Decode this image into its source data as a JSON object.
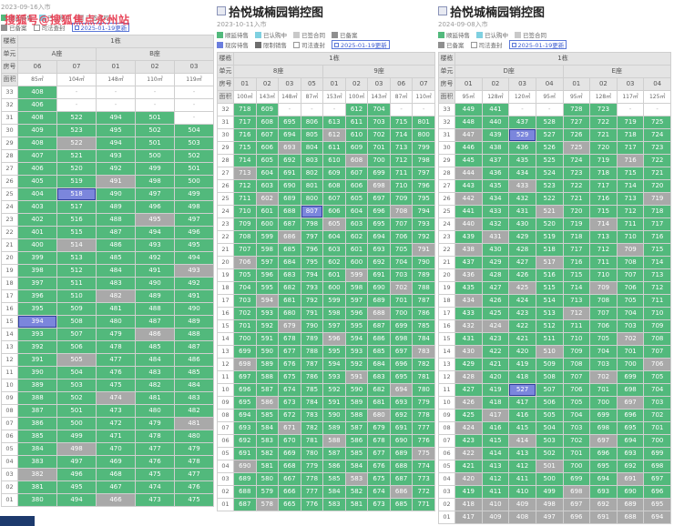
{
  "watermark": "搜狐号@搜狐焦点永州站",
  "colors": {
    "available_green": "#52b97c",
    "signed_gray": "#a9a9a9",
    "subscribed_blue": "#7b86dc",
    "cyan": "#7fd0e0",
    "silver": "#c9c9c9",
    "dark_gray": "#8f8f8f",
    "deep_gray": "#6e6e6e",
    "note_blue": "#3b5bd0",
    "watermark_red": "#e8465a"
  },
  "panels": [
    {
      "title": "",
      "date": "2023-09-16入市",
      "building": "1栋",
      "header_labels": {
        "building": "楼栋",
        "unit": "单元",
        "room": "房号",
        "area": "面积"
      },
      "legend": [
        [
          {
            "label": "顺延待售",
            "color": "#52b97c"
          },
          {
            "label": "已认购中",
            "color": "#7fd0e0"
          },
          {
            "label": "已签合同",
            "color": "#c9c9c9"
          }
        ],
        [
          {
            "label": "已备案",
            "color": "#8f8f8f"
          },
          {
            "label": "司法查封",
            "color": "#ffffff"
          },
          {
            "note": true,
            "label": "2025-01-19更新"
          }
        ]
      ],
      "units": [
        {
          "name": "A座",
          "cols": [
            "06",
            "07"
          ]
        },
        {
          "name": "B座",
          "cols": [
            "01",
            "02",
            "03"
          ]
        }
      ],
      "areas": [
        "85㎡",
        "104㎡",
        "148㎡",
        "110㎡",
        "119㎡"
      ],
      "rows": [
        "33|408g -n -n -n -n",
        "32|406g -n -n -n -n",
        "31|408g 522g 494g 501g -n",
        "30|409g 523g 495g 502g 504g",
        "29|408g 522a 494g 501g 503g",
        "28|407g 521g 493g 500g 502g",
        "27|406g 520g 492g 499g 501g",
        "26|405g 519g 491a 498g 500g",
        "25|404g 518b 490g 497g 499g",
        "24|403g 517g 489g 496g 498g",
        "23|402g 516g 488g 495a 497g",
        "22|401g 515g 487g 494g 496g",
        "21|400g 514a 486g 493g 495g",
        "20|399g 513g 485g 492g 494g",
        "19|398g 512g 484g 491g 493a",
        "18|397g 511g 483g 490g 492g",
        "17|396g 510g 482a 489g 491g",
        "16|395g 509g 481g 488g 490g",
        "15|394b 508g 480g 487g 489g",
        "14|393g 507g 479g 486a 488g",
        "13|392g 506g 478g 485g 487g",
        "12|391g 505a 477g 484g 486g",
        "11|390g 504g 476g 483g 485g",
        "10|389g 503g 475g 482g 484g",
        "09|388g 502g 474a 481g 483g",
        "08|387g 501g 473g 480g 482g",
        "07|386g 500g 472g 479g 481a",
        "06|385g 499g 471g 478g 480g",
        "05|384g 498a 470g 477g 479g",
        "04|383g 497g 469g 476g 478g",
        "03|382a 496g 468g 475g 477g",
        "02|381g 495g 467g 474g 476g",
        "01|380g 494g 466a 473g 475g"
      ]
    },
    {
      "title": "拾悦城楠园销控图",
      "date": "2023-10-11入市",
      "building": "1栋",
      "header_labels": {
        "building": "楼栋",
        "unit": "单元",
        "room": "房号",
        "area": "面积"
      },
      "legend": [
        [
          {
            "label": "顺延待售",
            "color": "#52b97c"
          },
          {
            "label": "已认购中",
            "color": "#7fd0e0"
          },
          {
            "label": "已签合同",
            "color": "#c9c9c9"
          },
          {
            "label": "已备案",
            "color": "#8f8f8f"
          }
        ],
        [
          {
            "label": "现房待售",
            "color": "#6b7ede"
          },
          {
            "label": "限制销售",
            "color": "#6e6e6e"
          },
          {
            "label": "司法查封",
            "color": "#ffffff"
          },
          {
            "note": true,
            "label": "2025-01-19更新"
          }
        ]
      ],
      "units": [
        {
          "name": "8座",
          "cols": [
            "01",
            "02",
            "03",
            "05"
          ]
        },
        {
          "name": "9座",
          "cols": [
            "01",
            "02",
            "03",
            "06",
            "07"
          ]
        }
      ],
      "areas": [
        "100㎡",
        "143㎡",
        "148㎡",
        "87㎡",
        "153㎡",
        "100㎡",
        "143㎡",
        "87㎡",
        "110㎡"
      ],
      "rows": [
        "32|718g 609g -n -n -n 612g 704g -n -n",
        "31|717g 608g 695g 806g 613g 611g 703g 715g 801g",
        "30|716g 607g 694g 805g 612a 610g 702g 714g 800g",
        "29|715g 606g 693a 804g 611g 609g 701g 713g 799g",
        "28|714g 605g 692g 803g 610g 608a 700g 712g 798g",
        "27|713a 604g 691g 802g 609g 607g 699g 711g 797g",
        "26|712g 603g 690g 801g 608g 606g 698a 710g 796g",
        "25|711g 602a 689g 800g 607g 605g 697g 709g 795g",
        "24|710g 601g 688g 807b 606g 604g 696g 708a 794g",
        "23|709g 600g 687g 798g 605a 603g 695g 707g 793g",
        "22|708g 599g 686a 797g 604g 602g 694g 706g 792g",
        "21|707g 598g 685g 796g 603g 601g 693g 705g 791a",
        "20|706a 597g 684g 795g 602g 600g 692g 704g 790g",
        "19|705g 596g 683g 794g 601g 599a 691g 703g 789g",
        "18|704g 595g 682g 793g 600g 598g 690g 702a 788g",
        "17|703g 594a 681g 792g 599g 597g 689g 701g 787g",
        "16|702g 593g 680g 791g 598g 596g 688a 700g 786g",
        "15|701g 592g 679a 790g 597g 595g 687g 699g 785g",
        "14|700g 591g 678g 789g 596a 594g 686g 698g 784g",
        "13|699g 590g 677g 788g 595g 593g 685g 697g 783a",
        "12|698a 589g 676g 787g 594g 592g 684g 696g 782g",
        "11|697g 588g 675g 786g 593g 591a 683g 695g 781g",
        "10|696g 587g 674g 785g 592g 590g 682g 694a 780g",
        "09|695g 586a 673g 784g 591g 589g 681g 693g 779g",
        "08|694g 585g 672g 783g 590g 588g 680a 692g 778g",
        "07|693g 584g 671a 782g 589g 587g 679g 691g 777g",
        "06|692g 583g 670g 781g 588a 586g 678g 690g 776g",
        "05|691g 582g 669g 780g 587g 585g 677g 689g 775a",
        "04|690a 581g 668g 779g 586g 584g 676g 688g 774g",
        "03|689g 580g 667g 778g 585g 583a 675g 687g 773g",
        "02|688g 579g 666g 777g 584g 582g 674g 686a 772g",
        "01|687g 578a 665g 776g 583g 581g 673g 685g 771g"
      ]
    },
    {
      "title": "拾悦城楠园销控图",
      "date": "2024-09-08入市",
      "building": "1栋",
      "header_labels": {
        "building": "楼栋",
        "unit": "单元",
        "room": "房号",
        "area": "面积"
      },
      "legend": [
        [
          {
            "label": "顺延待售",
            "color": "#52b97c"
          },
          {
            "label": "已认购中",
            "color": "#7fd0e0"
          },
          {
            "label": "已签合同",
            "color": "#c9c9c9"
          }
        ],
        [
          {
            "label": "已备案",
            "color": "#8f8f8f"
          },
          {
            "label": "司法查封",
            "color": "#ffffff"
          },
          {
            "note": true,
            "label": "2025-01-19更新"
          }
        ]
      ],
      "units": [
        {
          "name": "D座",
          "cols": [
            "01",
            "02",
            "03",
            "04"
          ]
        },
        {
          "name": "E座",
          "cols": [
            "01",
            "02",
            "03",
            "04"
          ]
        }
      ],
      "areas": [
        "95㎡",
        "128㎡",
        "120㎡",
        "95㎡",
        "95㎡",
        "128㎡",
        "117㎡",
        "125㎡"
      ],
      "rows": [
        "33|449g 441g -n -n 728g 723g -n -n",
        "32|448g 440g 437g 528g 727g 722g 719g 725g",
        "31|447a 439g 529b 527g 726g 721g 718g 724g",
        "30|446g 438g 436g 526g 725a 720g 717g 723g",
        "29|445g 437g 435g 525g 724g 719g 716a 722g",
        "28|444a 436g 434g 524g 723g 718g 715g 721g",
        "27|443g 435g 433a 523g 722g 717g 714g 720g",
        "26|442a 434g 432g 522g 721g 716g 713g 719a",
        "25|441g 433g 431g 521a 720g 715g 712g 718g",
        "24|440a 432g 430g 520g 719g 714a 711g 717g",
        "23|439g 431a 429g 519g 718g 713g 710g 716g",
        "22|438a 430g 428g 518g 717g 712g 709a 715g",
        "21|437g 429g 427g 517a 716g 711g 708g 714g",
        "20|436a 428g 426g 516g 715g 710g 707g 713g",
        "19|435g 427g 425a 515g 714g 709a 706g 712g",
        "18|434a 426g 424g 514g 713g 708g 705g 711g",
        "17|433g 425g 423g 513g 712a 707g 704g 710g",
        "16|432a 424a 422g 512g 711g 706g 703g 709g",
        "15|431g 423g 421g 511g 710g 705g 702a 708g",
        "14|430a 422g 420g 510a 709g 704g 701g 707g",
        "13|429g 421g 419g 509g 708g 703g 700g 706a",
        "12|428a 420g 418g 508g 707g 702a 699g 705g",
        "11|427g 419g 527b 507g 706g 701g 698g 704g",
        "10|426a 418g 417g 506g 705g 700g 697a 703g",
        "09|425g 417a 416g 505g 704g 699g 696g 702g",
        "08|424a 416g 415g 504g 703g 698g 695g 701g",
        "07|423g 415g 414a 503g 702g 697a 694g 700g",
        "06|422a 414g 413g 502g 701g 696g 693g 699g",
        "05|421g 413g 412g 501a 700g 695g 692g 698g",
        "04|420a 412g 411g 500g 699g 694g 691a 697g",
        "03|419g 411g 410g 499g 698a 693g 690g 696g",
        "02|418a 410a 409a 498a 697a 692a 689a 695a",
        "01|417a 409a 408a 497a 696a 691a 688a 694a"
      ]
    }
  ]
}
